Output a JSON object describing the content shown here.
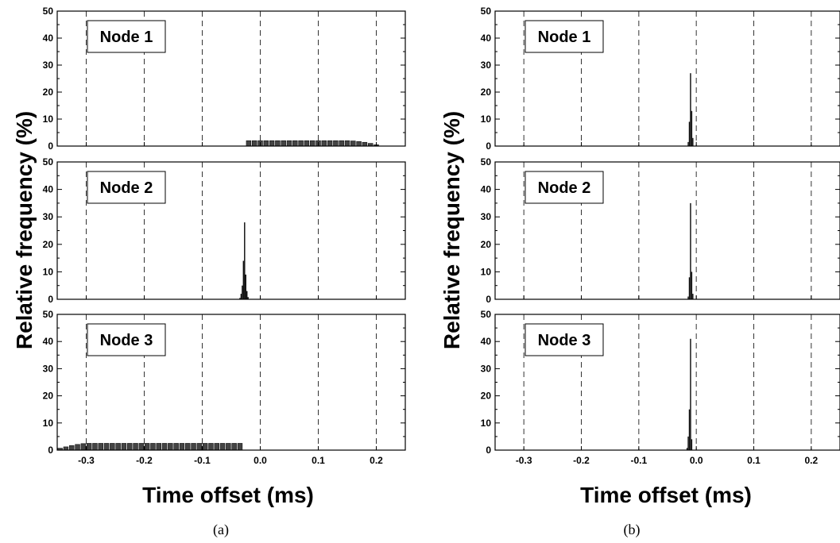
{
  "figure": {
    "ylabel": "Relative frequency (%)",
    "xlabel": "Time offset (ms)",
    "captions": [
      "(a)",
      "(b)"
    ]
  },
  "chart_data": [
    {
      "type": "bar",
      "panel": "(a)",
      "node": "Node 1",
      "xlabel": "Time offset (ms)",
      "ylabel": "Relative frequency (%)",
      "xlim": [
        -0.35,
        0.25
      ],
      "ylim": [
        0,
        50
      ],
      "xticks": [
        -0.3,
        -0.2,
        -0.1,
        0.0,
        0.1,
        0.2
      ],
      "yticks": [
        0,
        10,
        20,
        30,
        40,
        50
      ],
      "grid": "vertical dashed",
      "x": [
        -0.02,
        -0.01,
        0.0,
        0.01,
        0.02,
        0.03,
        0.04,
        0.05,
        0.06,
        0.07,
        0.08,
        0.09,
        0.1,
        0.11,
        0.12,
        0.13,
        0.14,
        0.15,
        0.16,
        0.17,
        0.18,
        0.19,
        0.2
      ],
      "values": [
        2.0,
        2.0,
        2.0,
        2.0,
        2.0,
        2.0,
        2.0,
        2.0,
        2.0,
        2.0,
        2.0,
        2.0,
        2.0,
        2.0,
        2.0,
        2.0,
        2.0,
        2.0,
        1.9,
        1.7,
        1.4,
        1.0,
        0.5
      ]
    },
    {
      "type": "bar",
      "panel": "(a)",
      "node": "Node 2",
      "xlabel": "Time offset (ms)",
      "ylabel": "Relative frequency (%)",
      "xlim": [
        -0.35,
        0.25
      ],
      "ylim": [
        0,
        50
      ],
      "xticks": [
        -0.3,
        -0.2,
        -0.1,
        0.0,
        0.1,
        0.2
      ],
      "yticks": [
        0,
        10,
        20,
        30,
        40,
        50
      ],
      "grid": "vertical dashed",
      "x": [
        -0.035,
        -0.033,
        -0.031,
        -0.029,
        -0.027,
        -0.025,
        -0.023,
        -0.021
      ],
      "values": [
        0.5,
        2.0,
        5.0,
        14.0,
        28.0,
        9.0,
        3.0,
        0.8
      ]
    },
    {
      "type": "bar",
      "panel": "(a)",
      "node": "Node 3",
      "xlabel": "Time offset (ms)",
      "ylabel": "Relative frequency (%)",
      "xlim": [
        -0.35,
        0.25
      ],
      "ylim": [
        0,
        50
      ],
      "xticks": [
        -0.3,
        -0.2,
        -0.1,
        0.0,
        0.1,
        0.2
      ],
      "yticks": [
        0,
        10,
        20,
        30,
        40,
        50
      ],
      "grid": "vertical dashed",
      "x": [
        -0.345,
        -0.335,
        -0.325,
        -0.315,
        -0.305,
        -0.295,
        -0.285,
        -0.275,
        -0.265,
        -0.255,
        -0.245,
        -0.235,
        -0.225,
        -0.215,
        -0.205,
        -0.195,
        -0.185,
        -0.175,
        -0.165,
        -0.155,
        -0.145,
        -0.135,
        -0.125,
        -0.115,
        -0.105,
        -0.095,
        -0.085,
        -0.075,
        -0.065,
        -0.055,
        -0.045,
        -0.035
      ],
      "values": [
        0.7,
        1.2,
        1.7,
        2.1,
        2.4,
        2.5,
        2.5,
        2.5,
        2.5,
        2.5,
        2.5,
        2.5,
        2.5,
        2.5,
        2.5,
        2.5,
        2.5,
        2.5,
        2.5,
        2.5,
        2.5,
        2.5,
        2.5,
        2.5,
        2.5,
        2.5,
        2.5,
        2.5,
        2.5,
        2.5,
        2.5,
        2.5
      ]
    },
    {
      "type": "bar",
      "panel": "(b)",
      "node": "Node 1",
      "xlabel": "Time offset (ms)",
      "ylabel": "Relative frequency (%)",
      "xlim": [
        -0.35,
        0.25
      ],
      "ylim": [
        0,
        50
      ],
      "xticks": [
        -0.3,
        -0.2,
        -0.1,
        0.0,
        0.1,
        0.2
      ],
      "yticks": [
        0,
        10,
        20,
        30,
        40,
        50
      ],
      "grid": "vertical dashed",
      "x": [
        -0.014,
        -0.012,
        -0.01,
        -0.008,
        -0.006
      ],
      "values": [
        1.5,
        9.0,
        27.0,
        13.0,
        3.0
      ]
    },
    {
      "type": "bar",
      "panel": "(b)",
      "node": "Node 2",
      "xlabel": "Time offset (ms)",
      "ylabel": "Relative frequency (%)",
      "xlim": [
        -0.35,
        0.25
      ],
      "ylim": [
        0,
        50
      ],
      "xticks": [
        -0.3,
        -0.2,
        -0.1,
        0.0,
        0.1,
        0.2
      ],
      "yticks": [
        0,
        10,
        20,
        30,
        40,
        50
      ],
      "grid": "vertical dashed",
      "x": [
        -0.014,
        -0.012,
        -0.01,
        -0.008,
        -0.006
      ],
      "values": [
        1.0,
        8.0,
        35.0,
        10.0,
        2.0
      ]
    },
    {
      "type": "bar",
      "panel": "(b)",
      "node": "Node 3",
      "xlabel": "Time offset (ms)",
      "ylabel": "Relative frequency (%)",
      "xlim": [
        -0.35,
        0.25
      ],
      "ylim": [
        0,
        50
      ],
      "xticks": [
        -0.3,
        -0.2,
        -0.1,
        0.0,
        0.1,
        0.2
      ],
      "yticks": [
        0,
        10,
        20,
        30,
        40,
        50
      ],
      "grid": "vertical dashed",
      "x": [
        -0.016,
        -0.014,
        -0.012,
        -0.01,
        -0.008
      ],
      "values": [
        0.8,
        5.0,
        15.0,
        41.0,
        4.0
      ]
    }
  ]
}
